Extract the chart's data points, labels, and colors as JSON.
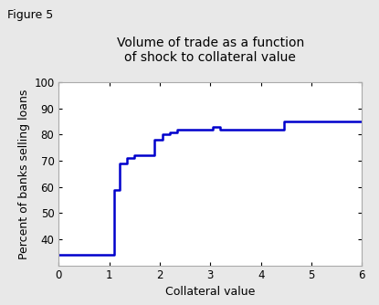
{
  "title_line1": "Volume of trade as a function",
  "title_line2": "of shock to collateral value",
  "figure_label": "Figure 5",
  "xlabel": "Collateral value",
  "ylabel": "Percent of banks selling loans",
  "xlim": [
    0,
    6
  ],
  "ylim": [
    30,
    100
  ],
  "yticks": [
    40,
    50,
    60,
    70,
    80,
    90,
    100
  ],
  "xticks": [
    0,
    1,
    2,
    3,
    4,
    5,
    6
  ],
  "line_color": "#0000cc",
  "line_width": 1.8,
  "x": [
    0.0,
    1.1,
    1.1,
    1.2,
    1.2,
    1.35,
    1.35,
    1.5,
    1.5,
    1.9,
    1.9,
    2.05,
    2.05,
    2.2,
    2.2,
    2.35,
    2.35,
    3.05,
    3.05,
    3.2,
    3.2,
    4.45,
    4.45,
    4.6,
    4.6,
    6.0
  ],
  "y": [
    34,
    34,
    59,
    59,
    69,
    69,
    71,
    71,
    72,
    72,
    78,
    78,
    80,
    80,
    81,
    81,
    82,
    82,
    83,
    83,
    82,
    82,
    85,
    85,
    85,
    85
  ],
  "background_color": "#e8e8e8",
  "plot_bg_color": "#ffffff",
  "spine_color": "#aaaaaa",
  "title_fontsize": 10,
  "label_fontsize": 9,
  "tick_fontsize": 8.5,
  "fig5_fontsize": 9
}
